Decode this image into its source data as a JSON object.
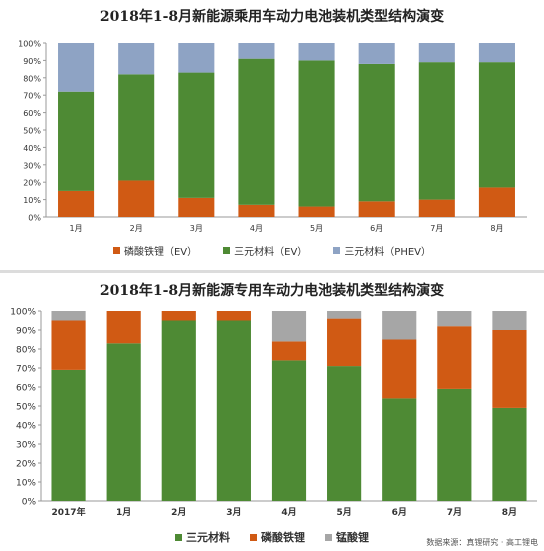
{
  "charts": {
    "top": {
      "title": "2018年1-8月新能源乘用车动力电池装机类型结构演变",
      "legend": [
        "磷酸铁锂（EV）",
        "三元材料（EV）",
        "三元材料（PHEV）"
      ]
    },
    "bottom": {
      "title": "2018年1-8月新能源专用车动力电池装机类型结构演变",
      "legend": [
        "三元材料",
        "磷酸铁锂",
        "锰酸锂"
      ]
    }
  },
  "source_note": "数据来源：真锂研究 · 高工锂电",
  "chart_data": [
    {
      "type": "bar",
      "stacked": true,
      "percent": true,
      "title": "2018年1-8月新能源乘用车动力电池装机类型结构演变",
      "categories": [
        "1月",
        "2月",
        "3月",
        "4月",
        "5月",
        "6月",
        "7月",
        "8月"
      ],
      "series": [
        {
          "name": "磷酸铁锂（EV）",
          "color": "#d05a14",
          "values": [
            15,
            21,
            11,
            7,
            6,
            9,
            10,
            17
          ]
        },
        {
          "name": "三元材料（EV）",
          "color": "#4e8a34",
          "values": [
            57,
            61,
            72,
            84,
            84,
            79,
            79,
            72
          ]
        },
        {
          "name": "三元材料（PHEV）",
          "color": "#8ea3c4",
          "values": [
            28,
            18,
            17,
            9,
            10,
            12,
            11,
            11
          ]
        }
      ],
      "ylim": [
        0,
        100
      ],
      "yticks": [
        "0%",
        "10%",
        "20%",
        "30%",
        "40%",
        "50%",
        "60%",
        "70%",
        "80%",
        "90%",
        "100%"
      ],
      "grid": false,
      "legend_position": "bottom"
    },
    {
      "type": "bar",
      "stacked": true,
      "percent": true,
      "title": "2018年1-8月新能源专用车动力电池装机类型结构演变",
      "categories": [
        "2017年",
        "1月",
        "2月",
        "3月",
        "4月",
        "5月",
        "6月",
        "7月",
        "8月"
      ],
      "series": [
        {
          "name": "三元材料",
          "color": "#4e8a34",
          "values": [
            69,
            83,
            95,
            95,
            74,
            71,
            54,
            59,
            49
          ]
        },
        {
          "name": "磷酸铁锂",
          "color": "#d05a14",
          "values": [
            26,
            17,
            5,
            5,
            10,
            25,
            31,
            33,
            41
          ]
        },
        {
          "name": "锰酸锂",
          "color": "#a6a6a6",
          "values": [
            5,
            0,
            0,
            0,
            16,
            4,
            15,
            8,
            10
          ]
        }
      ],
      "ylim": [
        0,
        100
      ],
      "yticks": [
        "0%",
        "10%",
        "20%",
        "30%",
        "40%",
        "50%",
        "60%",
        "70%",
        "80%",
        "90%",
        "100%"
      ],
      "grid": false,
      "legend_position": "bottom"
    }
  ]
}
